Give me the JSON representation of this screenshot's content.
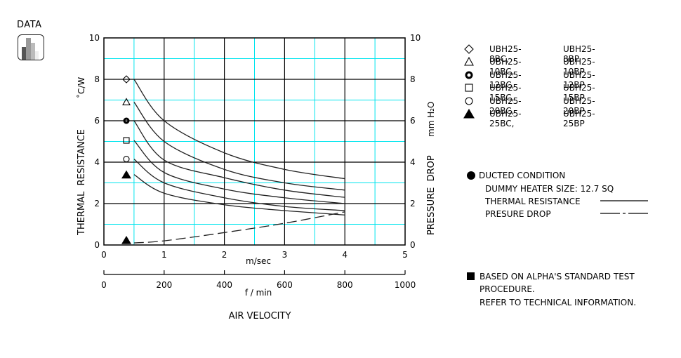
{
  "badge": {
    "label": "DATA",
    "icon": "bar-chart-icon"
  },
  "axes": {
    "left_label": "THERMAL  RESISTANCE",
    "left_unit": "˚C/W",
    "right_label": "PRESSURE  DROP",
    "right_unit": "mm H₂O",
    "x_unit_primary": "m/sec",
    "x_unit_secondary": "f / min",
    "x_title": "AIR VELOCITY",
    "y_ticks": [
      "0",
      "2",
      "4",
      "6",
      "8",
      "10"
    ],
    "x_ticks_primary": [
      "0",
      "1",
      "2",
      "3",
      "4",
      "5"
    ],
    "x_ticks_secondary": [
      "0",
      "200",
      "400",
      "600",
      "800",
      "1000"
    ]
  },
  "legend": [
    {
      "symbol": "diamond-open",
      "bc": "UBH25-8BC,",
      "bp": "UBH25-8BP"
    },
    {
      "symbol": "triangle-open",
      "bc": "UBH25-10BC,",
      "bp": "UBH25-10BP"
    },
    {
      "symbol": "circle-bold-ring",
      "bc": "UBH25-12BC,",
      "bp": "UBH25-12BP"
    },
    {
      "symbol": "square-open",
      "bc": "UBH25-15BC,",
      "bp": "UBH25-15BP"
    },
    {
      "symbol": "circle-open",
      "bc": "UBH25-20BC,",
      "bp": "UBH25-20BP"
    },
    {
      "symbol": "triangle-filled",
      "bc": "UBH25-25BC,",
      "bp": "UBH25-25BP"
    }
  ],
  "conditions": {
    "title": "DUCTED CONDITION",
    "heater": "DUMMY HEATER SIZE: 12.7 SQ",
    "thermal_label": "THERMAL RESISTANCE",
    "pressure_label": "PRESURE DROP"
  },
  "note": {
    "line1": "BASED ON ALPHA'S STANDARD TEST",
    "line2": "PROCEDURE.",
    "line3": "REFER TO TECHNICAL INFORMATION."
  },
  "colors": {
    "grid_major": "#000000",
    "grid_minor": "#00e5ee",
    "curve": "#222222"
  },
  "chart_data": {
    "type": "line",
    "title": "",
    "xlabel": "AIR VELOCITY (m/sec)",
    "xlabel_secondary": "f / min (0–1000)",
    "ylabel": "THERMAL RESISTANCE ˚C/W",
    "ylabel_right": "PRESSURE DROP mm H2O",
    "xlim": [
      0,
      5
    ],
    "ylim": [
      0,
      10
    ],
    "ylim_right": [
      0,
      10
    ],
    "grid": true,
    "legend_position": "right",
    "x": [
      0.5,
      1,
      2,
      3,
      4
    ],
    "series": [
      {
        "name": "UBH25-8BC, UBH25-8BP",
        "axis": "left",
        "marker": "diamond-open",
        "values": [
          8.0,
          6.0,
          4.45,
          3.65,
          3.2
        ]
      },
      {
        "name": "UBH25-10BC, UBH25-10BP",
        "axis": "left",
        "marker": "triangle-open",
        "values": [
          6.9,
          5.0,
          3.65,
          3.0,
          2.65
        ]
      },
      {
        "name": "UBH25-12BC, UBH25-12BP",
        "axis": "left",
        "marker": "circle-bold-ring",
        "values": [
          6.0,
          4.1,
          3.25,
          2.65,
          2.3
        ]
      },
      {
        "name": "UBH25-15BC, UBH25-15BP",
        "axis": "left",
        "marker": "square-open",
        "values": [
          5.05,
          3.5,
          2.7,
          2.28,
          2.0
        ]
      },
      {
        "name": "UBH25-20BC, UBH25-20BP",
        "axis": "left",
        "marker": "circle-open",
        "values": [
          4.15,
          3.0,
          2.28,
          1.86,
          1.66
        ]
      },
      {
        "name": "UBH25-25BC, UBH25-25BP",
        "axis": "left",
        "marker": "triangle-filled",
        "values": [
          3.4,
          2.5,
          1.94,
          1.66,
          1.45
        ]
      },
      {
        "name": "Pressure drop",
        "axis": "right",
        "style": "dashed",
        "values": [
          0.1,
          0.2,
          0.6,
          1.05,
          1.6
        ]
      }
    ]
  }
}
